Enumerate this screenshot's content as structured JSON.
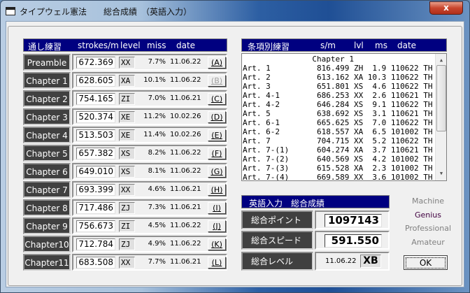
{
  "window": {
    "title": "タイプウェル憲法　　総合成績　（英語入力）",
    "close": "x"
  },
  "left": {
    "header": {
      "title": "通し練習",
      "speed": "strokes/m",
      "level": "level",
      "miss": "miss",
      "date": "date"
    },
    "rows": [
      {
        "label": "Preamble",
        "speed": "672.369",
        "level": "XX",
        "miss": "7.7%",
        "date": "11.06.22",
        "button": "(A)",
        "enabled": true
      },
      {
        "label": "Chapter 1",
        "speed": "628.605",
        "level": "XA",
        "miss": "10.1%",
        "date": "11.06.22",
        "button": "(B)",
        "enabled": false
      },
      {
        "label": "Chapter 2",
        "speed": "754.165",
        "level": "ZI",
        "miss": "7.0%",
        "date": "11.06.21",
        "button": "(C)",
        "enabled": true
      },
      {
        "label": "Chapter 3",
        "speed": "520.374",
        "level": "XE",
        "miss": "11.2%",
        "date": "10.02.26",
        "button": "(D)",
        "enabled": true
      },
      {
        "label": "Chapter 4",
        "speed": "513.503",
        "level": "XE",
        "miss": "11.4%",
        "date": "10.02.26",
        "button": "(E)",
        "enabled": true
      },
      {
        "label": "Chapter 5",
        "speed": "657.382",
        "level": "XS",
        "miss": "8.2%",
        "date": "11.06.22",
        "button": "(F)",
        "enabled": true
      },
      {
        "label": "Chapter 6",
        "speed": "649.010",
        "level": "XS",
        "miss": "8.1%",
        "date": "11.06.22",
        "button": "(G)",
        "enabled": true
      },
      {
        "label": "Chapter 7",
        "speed": "693.399",
        "level": "XX",
        "miss": "4.6%",
        "date": "11.06.21",
        "button": "(H)",
        "enabled": true
      },
      {
        "label": "Chapter 8",
        "speed": "717.486",
        "level": "ZJ",
        "miss": "7.3%",
        "date": "11.06.21",
        "button": "(I)",
        "enabled": true
      },
      {
        "label": "Chapter 9",
        "speed": "756.673",
        "level": "ZI",
        "miss": "4.5%",
        "date": "11.06.22",
        "button": "(J)",
        "enabled": true
      },
      {
        "label": "Chapter10",
        "speed": "712.784",
        "level": "ZJ",
        "miss": "4.9%",
        "date": "11.06.22",
        "button": "(K)",
        "enabled": true
      },
      {
        "label": "Chapter11",
        "speed": "683.508",
        "level": "XX",
        "miss": "7.7%",
        "date": "11.06.21",
        "button": "(L)",
        "enabled": true
      }
    ]
  },
  "right": {
    "header": {
      "title": "条項別練習",
      "speed": "s/m",
      "level": "lvl",
      "miss": "ms",
      "date": "date"
    },
    "group": "Chapter 1",
    "items": [
      {
        "name": "Art. 1",
        "speed": "816.499",
        "level": "ZH",
        "miss": "1.9",
        "date": "110622",
        "tag": "TH"
      },
      {
        "name": "Art. 2",
        "speed": "613.162",
        "level": "XA",
        "miss": "10.3",
        "date": "110622",
        "tag": "TH"
      },
      {
        "name": "Art. 3",
        "speed": "651.801",
        "level": "XS",
        "miss": "4.6",
        "date": "110622",
        "tag": "TH"
      },
      {
        "name": "Art. 4-1",
        "speed": "686.253",
        "level": "XX",
        "miss": "2.6",
        "date": "110621",
        "tag": "TH"
      },
      {
        "name": "Art. 4-2",
        "speed": "646.284",
        "level": "XS",
        "miss": "9.1",
        "date": "110622",
        "tag": "TH"
      },
      {
        "name": "Art. 5",
        "speed": "638.692",
        "level": "XS",
        "miss": "3.1",
        "date": "110621",
        "tag": "TH"
      },
      {
        "name": "Art. 6-1",
        "speed": "665.625",
        "level": "XS",
        "miss": "7.0",
        "date": "110622",
        "tag": "TH"
      },
      {
        "name": "Art. 6-2",
        "speed": "618.557",
        "level": "XA",
        "miss": "6.5",
        "date": "101002",
        "tag": "TH"
      },
      {
        "name": "Art. 7",
        "speed": "704.715",
        "level": "XX",
        "miss": "5.2",
        "date": "110622",
        "tag": "TH"
      },
      {
        "name": "Art. 7-(1)",
        "speed": "604.274",
        "level": "XA",
        "miss": "3.7",
        "date": "110621",
        "tag": "TH"
      },
      {
        "name": "Art. 7-(2)",
        "speed": "640.569",
        "level": "XS",
        "miss": "4.2",
        "date": "101002",
        "tag": "TH"
      },
      {
        "name": "Art. 7-(3)",
        "speed": "615.528",
        "level": "XA",
        "miss": "2.3",
        "date": "101002",
        "tag": "TH"
      },
      {
        "name": "Art. 7-(4)",
        "speed": "669.589",
        "level": "XX",
        "miss": "3.6",
        "date": "101002",
        "tag": "TH"
      }
    ]
  },
  "summary": {
    "title": "英語入力　総合成績",
    "points_label": "総合ポイント",
    "points": "1097143",
    "speed_label": "総合スピード",
    "speed": "591.550",
    "level_label": "総合レベル",
    "level_date": "11.06.22",
    "level": "XB"
  },
  "ranks": [
    {
      "label": "Machine",
      "active": false
    },
    {
      "label": "Genius",
      "active": true
    },
    {
      "label": "Professional",
      "active": false
    },
    {
      "label": "Amateur",
      "active": false
    }
  ],
  "ok_label": "OK",
  "colors": {
    "header_bg": "#000080",
    "label_bg": "#404040",
    "active_rank": "#400040",
    "inactive_rank": "#808080"
  }
}
